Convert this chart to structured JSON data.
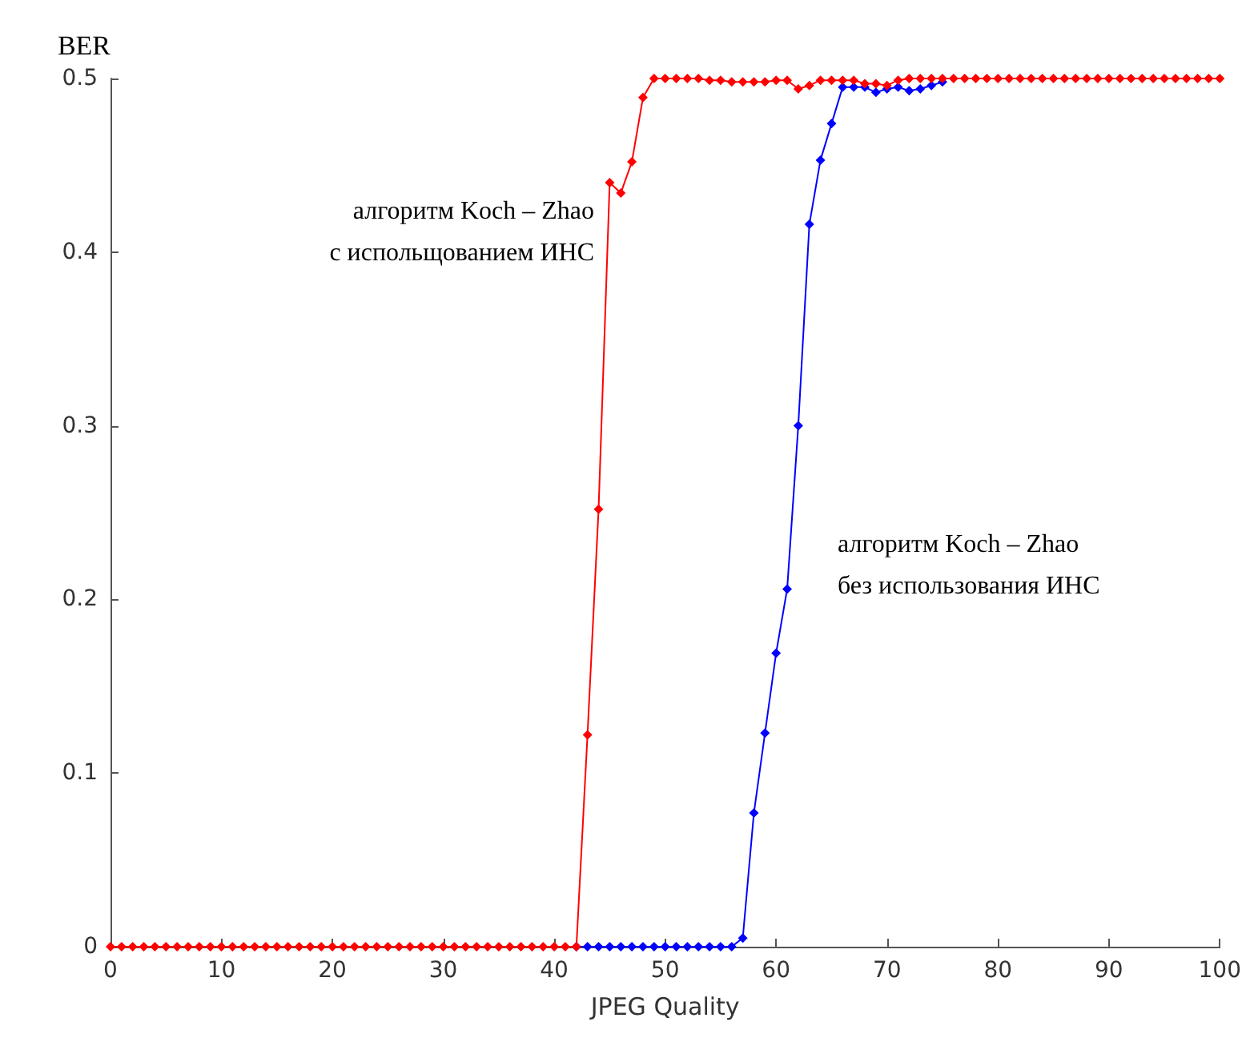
{
  "chart_data": {
    "type": "line",
    "xlabel": "JPEG Quality",
    "ylabel": "BER",
    "xlim": [
      0,
      100
    ],
    "ylim": [
      0,
      0.5
    ],
    "xticks": [
      0,
      10,
      20,
      30,
      40,
      50,
      60,
      70,
      80,
      90,
      100
    ],
    "yticks": [
      0,
      0.1,
      0.2,
      0.3,
      0.4,
      0.5
    ],
    "grid": false,
    "marker": "diamond",
    "line_style": "solid",
    "series": [
      {
        "name": "алгоритм Koch – Zhao\nбез использования ИНС",
        "color": "#0000ff",
        "x": [
          42,
          43,
          44,
          45,
          46,
          47,
          48,
          49,
          50,
          51,
          52,
          53,
          54,
          55,
          56,
          57,
          58,
          59,
          60,
          61,
          62,
          63,
          64,
          65,
          66,
          67,
          68,
          69,
          70,
          71,
          72,
          73,
          74,
          75
        ],
        "values": [
          0,
          0,
          0,
          0,
          0,
          0,
          0,
          0,
          0,
          0,
          0,
          0,
          0,
          0,
          0,
          0.005,
          0.077,
          0.123,
          0.169,
          0.206,
          0.3,
          0.416,
          0.453,
          0.474,
          0.495,
          0.495,
          0.495,
          0.492,
          0.494,
          0.495,
          0.493,
          0.494,
          0.496,
          0.498
        ]
      },
      {
        "name": "алгоритм Koch – Zhao\nс испольщованием ИНС",
        "color": "#ff0000",
        "x": [
          0,
          1,
          2,
          3,
          4,
          5,
          6,
          7,
          8,
          9,
          10,
          11,
          12,
          13,
          14,
          15,
          16,
          17,
          18,
          19,
          20,
          21,
          22,
          23,
          24,
          25,
          26,
          27,
          28,
          29,
          30,
          31,
          32,
          33,
          34,
          35,
          36,
          37,
          38,
          39,
          40,
          41,
          42,
          43,
          44,
          45,
          46,
          47,
          48,
          49,
          50,
          51,
          52,
          53,
          54,
          55,
          56,
          57,
          58,
          59,
          60,
          61,
          62,
          63,
          64,
          65,
          66,
          67,
          68,
          69,
          70,
          71,
          72,
          73,
          74,
          75,
          76,
          77,
          78,
          79,
          80,
          81,
          82,
          83,
          84,
          85,
          86,
          87,
          88,
          89,
          90,
          91,
          92,
          93,
          94,
          95,
          96,
          97,
          98,
          99,
          100
        ],
        "values": [
          0,
          0,
          0,
          0,
          0,
          0,
          0,
          0,
          0,
          0,
          0,
          0,
          0,
          0,
          0,
          0,
          0,
          0,
          0,
          0,
          0,
          0,
          0,
          0,
          0,
          0,
          0,
          0,
          0,
          0,
          0,
          0,
          0,
          0,
          0,
          0,
          0,
          0,
          0,
          0,
          0,
          0,
          0,
          0.122,
          0.252,
          0.44,
          0.434,
          0.452,
          0.489,
          0.5,
          0.5,
          0.5,
          0.5,
          0.5,
          0.499,
          0.499,
          0.498,
          0.498,
          0.498,
          0.498,
          0.499,
          0.499,
          0.494,
          0.496,
          0.499,
          0.499,
          0.499,
          0.499,
          0.497,
          0.497,
          0.496,
          0.499,
          0.5,
          0.5,
          0.5,
          0.5,
          0.5,
          0.5,
          0.5,
          0.5,
          0.5,
          0.5,
          0.5,
          0.5,
          0.5,
          0.5,
          0.5,
          0.5,
          0.5,
          0.5,
          0.5,
          0.5,
          0.5,
          0.5,
          0.5,
          0.5,
          0.5,
          0.5,
          0.5,
          0.5,
          0.5
        ]
      }
    ]
  }
}
